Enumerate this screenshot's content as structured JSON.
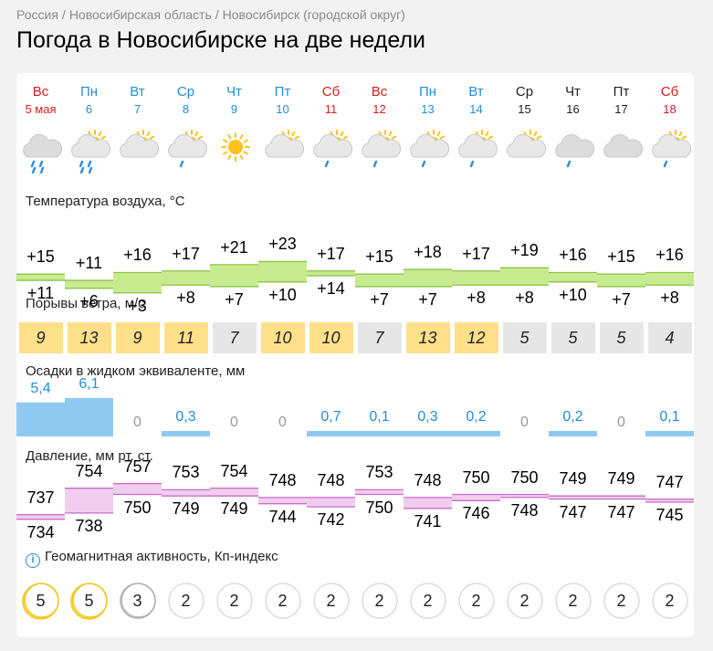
{
  "breadcrumb": [
    "Россия",
    "Новосибирская область",
    "Новосибирск (городской округ)"
  ],
  "page_title": "Погода в Новосибирске на две недели",
  "sections": {
    "temperature": "Температура воздуха, °C",
    "wind": "Порывы ветра, м/с",
    "precipitation": "Осадки в жидком эквиваленте, мм",
    "pressure": "Давление, мм рт. ст.",
    "geomagnetic": "Геомагнитная активность, Кп-индекс"
  },
  "colors": {
    "weekend": "#d81d1d",
    "weekday_blue": "#1f8fd6",
    "temp_band": "#c9eb8f",
    "pressure_band": "#f1cdf0",
    "wind_strong": "#ffe08a",
    "wind_calm": "#e6e6e6",
    "precip": "#8fc9f2"
  },
  "days": [
    {
      "dow": "Вс",
      "date": "5 мая",
      "style": "red",
      "icon": "cloud-heavy-rain-icon",
      "tmax": "+15",
      "tmin": "+11",
      "wind": "9",
      "wind_strong": true,
      "precip": "5,4",
      "precip_val": 5.4,
      "pmax": "737",
      "pmin": "734",
      "kp": "5"
    },
    {
      "dow": "Пн",
      "date": "6",
      "style": "blue",
      "icon": "sun-cloud-heavy-rain-icon",
      "tmax": "+11",
      "tmin": "+6",
      "wind": "13",
      "wind_strong": true,
      "precip": "6,1",
      "precip_val": 6.1,
      "pmax": "754",
      "pmin": "738",
      "kp": "5"
    },
    {
      "dow": "Вт",
      "date": "7",
      "style": "blue",
      "icon": "sun-cloud-icon",
      "tmax": "+16",
      "tmin": "+3",
      "wind": "9",
      "wind_strong": true,
      "precip": "0",
      "precip_val": 0,
      "pmax": "757",
      "pmin": "750",
      "kp": "3"
    },
    {
      "dow": "Ср",
      "date": "8",
      "style": "blue",
      "icon": "sun-cloud-light-rain-icon",
      "tmax": "+17",
      "tmin": "+8",
      "wind": "11",
      "wind_strong": true,
      "precip": "0,3",
      "precip_val": 0.3,
      "pmax": "753",
      "pmin": "749",
      "kp": "2"
    },
    {
      "dow": "Чт",
      "date": "9",
      "style": "blue",
      "icon": "sun-icon",
      "tmax": "+21",
      "tmin": "+7",
      "wind": "7",
      "wind_strong": false,
      "precip": "0",
      "precip_val": 0,
      "pmax": "754",
      "pmin": "749",
      "kp": "2"
    },
    {
      "dow": "Пт",
      "date": "10",
      "style": "blue",
      "icon": "sun-cloud-icon",
      "tmax": "+23",
      "tmin": "+10",
      "wind": "10",
      "wind_strong": true,
      "precip": "0",
      "precip_val": 0,
      "pmax": "748",
      "pmin": "744",
      "kp": "2"
    },
    {
      "dow": "Сб",
      "date": "11",
      "style": "red",
      "icon": "sun-cloud-light-rain-icon",
      "tmax": "+17",
      "tmin": "+14",
      "wind": "10",
      "wind_strong": true,
      "precip": "0,7",
      "precip_val": 0.7,
      "pmax": "748",
      "pmin": "742",
      "kp": "2"
    },
    {
      "dow": "Вс",
      "date": "12",
      "style": "red",
      "icon": "sun-cloud-light-rain-icon",
      "tmax": "+15",
      "tmin": "+7",
      "wind": "7",
      "wind_strong": false,
      "precip": "0,1",
      "precip_val": 0.1,
      "pmax": "753",
      "pmin": "750",
      "kp": "2"
    },
    {
      "dow": "Пн",
      "date": "13",
      "style": "blue",
      "icon": "sun-cloud-light-rain-icon",
      "tmax": "+18",
      "tmin": "+7",
      "wind": "13",
      "wind_strong": true,
      "precip": "0,3",
      "precip_val": 0.3,
      "pmax": "748",
      "pmin": "741",
      "kp": "2"
    },
    {
      "dow": "Вт",
      "date": "14",
      "style": "blue",
      "icon": "sun-cloud-light-rain-icon",
      "tmax": "+17",
      "tmin": "+8",
      "wind": "12",
      "wind_strong": true,
      "precip": "0,2",
      "precip_val": 0.2,
      "pmax": "750",
      "pmin": "746",
      "kp": "2"
    },
    {
      "dow": "Ср",
      "date": "15",
      "style": "black",
      "icon": "sun-cloud-icon",
      "tmax": "+19",
      "tmin": "+8",
      "wind": "5",
      "wind_strong": false,
      "precip": "0",
      "precip_val": 0,
      "pmax": "750",
      "pmin": "748",
      "kp": "2"
    },
    {
      "dow": "Чт",
      "date": "16",
      "style": "black",
      "icon": "cloud-light-rain-icon",
      "tmax": "+16",
      "tmin": "+10",
      "wind": "5",
      "wind_strong": false,
      "precip": "0,2",
      "precip_val": 0.2,
      "pmax": "749",
      "pmin": "747",
      "kp": "2"
    },
    {
      "dow": "Пт",
      "date": "17",
      "style": "black",
      "icon": "cloud-icon",
      "tmax": "+15",
      "tmin": "+7",
      "wind": "5",
      "wind_strong": false,
      "precip": "0",
      "precip_val": 0,
      "pmax": "749",
      "pmin": "747",
      "kp": "2"
    },
    {
      "dow": "Сб",
      "date": "18",
      "style": "red",
      "icon": "sun-cloud-light-rain-icon",
      "tmax": "+16",
      "tmin": "+8",
      "wind": "4",
      "wind_strong": false,
      "precip": "0,1",
      "precip_val": 0.1,
      "pmax": "747",
      "pmin": "745",
      "kp": "2"
    }
  ]
}
